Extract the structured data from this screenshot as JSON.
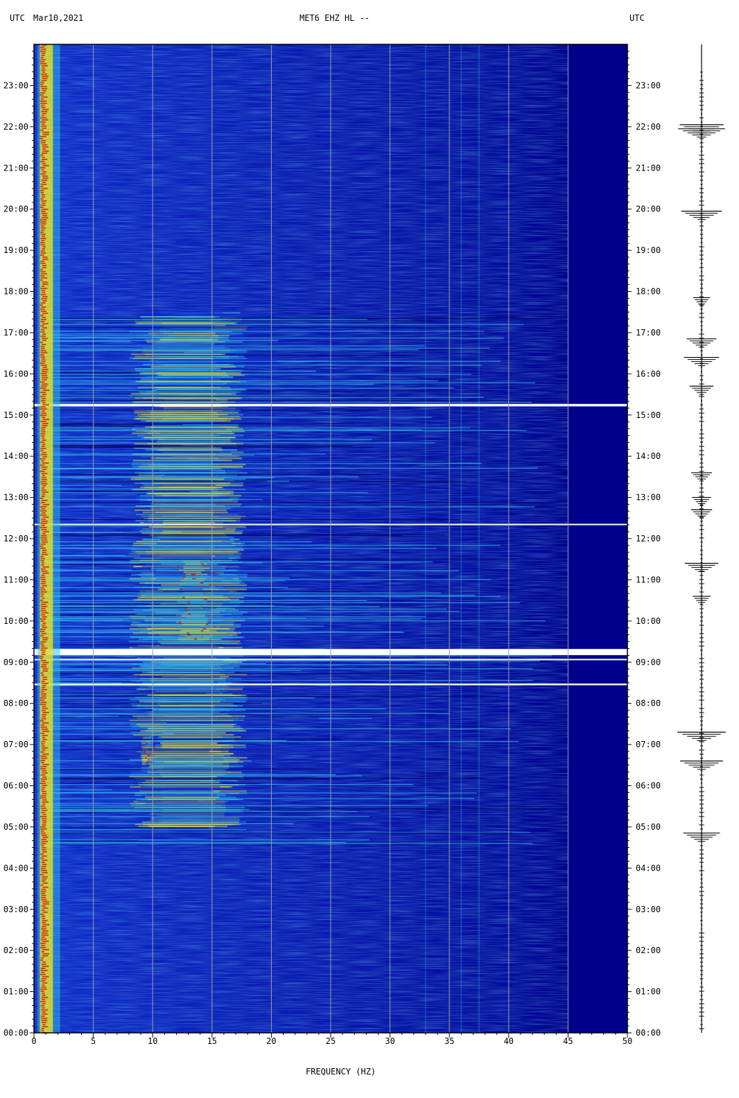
{
  "header": {
    "left_tz": "UTC",
    "date": "Mar10,2021",
    "station": "MET6 EHZ HL --",
    "right_tz": "UTC"
  },
  "colors": {
    "background": "#00008c",
    "low": "#1030d0",
    "mid": "#30c0e8",
    "high": "#e8e020",
    "peak": "#d01818",
    "grid": "#a0a0a0",
    "gap": "#ffffff",
    "trace": "#000000"
  },
  "chart_data": {
    "type": "heatmap",
    "title": "MET6 EHZ HL --",
    "xlabel": "FREQUENCY (HZ)",
    "ylabel": "",
    "xlim": [
      0,
      50
    ],
    "ylim_hours": [
      0,
      24
    ],
    "x_ticks": [
      "0",
      "5",
      "10",
      "15",
      "20",
      "25",
      "30",
      "35",
      "40",
      "45",
      "50"
    ],
    "y_ticks": [
      "00:00",
      "01:00",
      "02:00",
      "03:00",
      "04:00",
      "05:00",
      "06:00",
      "07:00",
      "08:00",
      "09:00",
      "10:00",
      "11:00",
      "12:00",
      "13:00",
      "14:00",
      "15:00",
      "16:00",
      "17:00",
      "18:00",
      "19:00",
      "20:00",
      "21:00",
      "22:00",
      "23:00"
    ],
    "grid": true,
    "data_gaps_hours": [
      [
        8.44,
        8.48
      ],
      [
        9.05,
        9.08
      ],
      [
        9.17,
        9.32
      ],
      [
        12.34,
        12.36
      ],
      [
        15.21,
        15.27
      ]
    ],
    "energy_bands": [
      {
        "f_min": 0.5,
        "f_max": 1.5,
        "start_h": 0,
        "end_h": 24,
        "level": 1.0
      },
      {
        "f_min": 8,
        "f_max": 18,
        "start_h": 5.0,
        "end_h": 17.5,
        "level": 0.75
      },
      {
        "f_min": 12,
        "f_max": 15,
        "start_h": 9.5,
        "end_h": 11.5,
        "level": 0.95
      },
      {
        "f_min": 9,
        "f_max": 10,
        "start_h": 6.5,
        "end_h": 7.2,
        "level": 0.9
      }
    ],
    "tonal_lines_hz": [
      33,
      36,
      37.5
    ],
    "trace_events_hours": [
      22.05,
      21.95,
      19.95,
      17.85,
      16.85,
      16.4,
      15.7,
      13.6,
      13.0,
      12.7,
      11.4,
      10.6,
      7.3,
      6.6,
      4.85
    ]
  }
}
